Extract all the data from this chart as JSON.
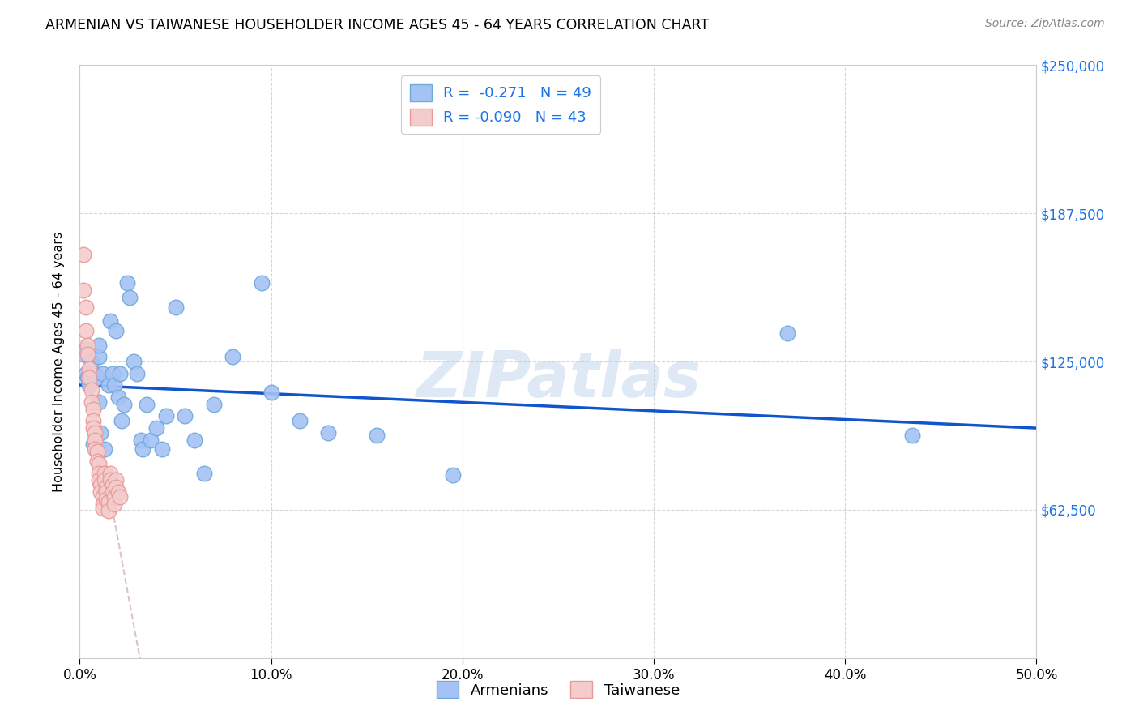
{
  "title": "ARMENIAN VS TAIWANESE HOUSEHOLDER INCOME AGES 45 - 64 YEARS CORRELATION CHART",
  "source": "Source: ZipAtlas.com",
  "ylabel": "Householder Income Ages 45 - 64 years",
  "xlim": [
    0.0,
    0.5
  ],
  "ylim": [
    0,
    250000
  ],
  "yticks": [
    62500,
    125000,
    187500,
    250000
  ],
  "ytick_labels": [
    "$62,500",
    "$125,000",
    "$187,500",
    "$250,000"
  ],
  "xticks": [
    0.0,
    0.1,
    0.2,
    0.3,
    0.4,
    0.5
  ],
  "xtick_labels": [
    "0.0%",
    "10.0%",
    "20.0%",
    "30.0%",
    "40.0%",
    "50.0%"
  ],
  "armenian_R": -0.271,
  "armenian_N": 49,
  "taiwanese_R": -0.09,
  "taiwanese_N": 43,
  "armenian_color": "#6fa8dc",
  "armenian_color_light": "#a4c2f4",
  "taiwanese_color": "#ea9999",
  "taiwanese_color_light": "#f4cccc",
  "trend_armenian_color": "#1155cc",
  "trend_taiwanese_color": "#cc4444",
  "watermark": "ZIPatlas",
  "armenians_x": [
    0.002,
    0.003,
    0.003,
    0.004,
    0.005,
    0.006,
    0.007,
    0.008,
    0.009,
    0.01,
    0.01,
    0.01,
    0.011,
    0.012,
    0.013,
    0.015,
    0.016,
    0.017,
    0.018,
    0.019,
    0.02,
    0.021,
    0.022,
    0.023,
    0.025,
    0.026,
    0.028,
    0.03,
    0.032,
    0.033,
    0.035,
    0.037,
    0.04,
    0.043,
    0.045,
    0.05,
    0.055,
    0.06,
    0.065,
    0.07,
    0.08,
    0.095,
    0.1,
    0.115,
    0.13,
    0.155,
    0.195,
    0.37,
    0.435
  ],
  "armenians_y": [
    128000,
    120000,
    130000,
    118000,
    115000,
    125000,
    90000,
    120000,
    118000,
    108000,
    127000,
    132000,
    95000,
    120000,
    88000,
    115000,
    142000,
    120000,
    115000,
    138000,
    110000,
    120000,
    100000,
    107000,
    158000,
    152000,
    125000,
    120000,
    92000,
    88000,
    107000,
    92000,
    97000,
    88000,
    102000,
    148000,
    102000,
    92000,
    78000,
    107000,
    127000,
    158000,
    112000,
    100000,
    95000,
    94000,
    77000,
    137000,
    94000
  ],
  "taiwanese_x": [
    0.002,
    0.002,
    0.003,
    0.003,
    0.004,
    0.004,
    0.005,
    0.005,
    0.006,
    0.006,
    0.007,
    0.007,
    0.007,
    0.008,
    0.008,
    0.008,
    0.009,
    0.009,
    0.01,
    0.01,
    0.01,
    0.011,
    0.011,
    0.012,
    0.012,
    0.012,
    0.013,
    0.013,
    0.014,
    0.014,
    0.014,
    0.015,
    0.015,
    0.016,
    0.016,
    0.017,
    0.017,
    0.018,
    0.018,
    0.019,
    0.019,
    0.02,
    0.021
  ],
  "taiwanese_y": [
    170000,
    155000,
    148000,
    138000,
    132000,
    128000,
    122000,
    118000,
    113000,
    108000,
    105000,
    100000,
    97000,
    95000,
    92000,
    88000,
    87000,
    83000,
    82000,
    78000,
    75000,
    73000,
    70000,
    68000,
    65000,
    63000,
    78000,
    75000,
    72000,
    70000,
    67000,
    66000,
    62000,
    78000,
    75000,
    73000,
    70000,
    68000,
    65000,
    75000,
    72000,
    70000,
    68000
  ]
}
